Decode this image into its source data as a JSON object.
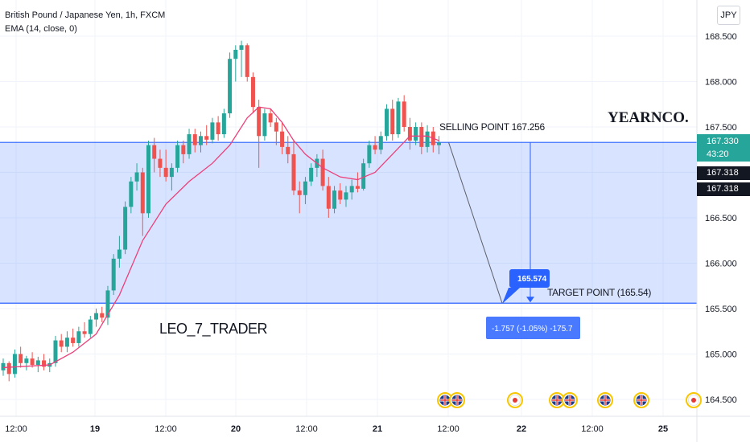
{
  "chart_data": {
    "type": "candlestick",
    "title": "British Pound / Japanese Yen, 1h, FXCM",
    "indicator": "EMA (14, close, 0)",
    "currency_button": "JPY",
    "ylim": [
      164.35,
      168.75
    ],
    "y_ticks": [
      "168.500",
      "168.000",
      "167.500",
      "167.000",
      "166.500",
      "166.000",
      "165.500",
      "165.000",
      "164.500"
    ],
    "x_ticks": [
      "12:00",
      "19",
      "12:00",
      "20",
      "12:00",
      "21",
      "12:00",
      "22",
      "12:00",
      "25"
    ],
    "price_tag": {
      "price": "167.330",
      "countdown": "43:20"
    },
    "secondary_tags": [
      "167.318",
      "167.318"
    ],
    "zone": {
      "top": 167.33,
      "bottom": 165.56
    },
    "candles": [
      [
        164.82,
        164.95,
        164.76,
        164.9
      ],
      [
        164.9,
        164.92,
        164.7,
        164.78
      ],
      [
        164.78,
        165.05,
        164.74,
        165.0
      ],
      [
        165.0,
        165.08,
        164.85,
        164.9
      ],
      [
        164.9,
        164.98,
        164.82,
        164.95
      ],
      [
        164.95,
        165.02,
        164.85,
        164.88
      ],
      [
        164.88,
        164.97,
        164.8,
        164.93
      ],
      [
        164.93,
        165.0,
        164.82,
        164.86
      ],
      [
        164.86,
        164.95,
        164.8,
        164.9
      ],
      [
        164.9,
        165.2,
        164.86,
        165.15
      ],
      [
        165.15,
        165.22,
        165.02,
        165.08
      ],
      [
        165.08,
        165.25,
        165.02,
        165.18
      ],
      [
        165.18,
        165.28,
        165.08,
        165.12
      ],
      [
        165.12,
        165.3,
        165.08,
        165.25
      ],
      [
        165.25,
        165.35,
        165.18,
        165.22
      ],
      [
        165.22,
        165.42,
        165.18,
        165.38
      ],
      [
        165.38,
        165.5,
        165.3,
        165.45
      ],
      [
        165.45,
        165.52,
        165.35,
        165.4
      ],
      [
        165.4,
        165.75,
        165.32,
        165.7
      ],
      [
        165.7,
        166.1,
        165.65,
        166.05
      ],
      [
        166.05,
        166.3,
        165.95,
        166.15
      ],
      [
        166.15,
        166.68,
        166.1,
        166.62
      ],
      [
        166.62,
        166.95,
        166.55,
        166.9
      ],
      [
        166.9,
        167.1,
        166.8,
        167.0
      ],
      [
        167.0,
        167.05,
        166.3,
        166.55
      ],
      [
        166.55,
        167.35,
        166.5,
        167.3
      ],
      [
        167.3,
        167.38,
        167.0,
        167.15
      ],
      [
        167.15,
        167.25,
        166.95,
        167.05
      ],
      [
        167.05,
        167.25,
        166.9,
        166.95
      ],
      [
        166.95,
        167.1,
        166.8,
        167.05
      ],
      [
        167.05,
        167.35,
        167.0,
        167.3
      ],
      [
        167.3,
        167.35,
        167.1,
        167.2
      ],
      [
        167.2,
        167.48,
        167.15,
        167.42
      ],
      [
        167.42,
        167.48,
        167.22,
        167.3
      ],
      [
        167.3,
        167.45,
        167.22,
        167.4
      ],
      [
        167.4,
        167.52,
        167.3,
        167.36
      ],
      [
        167.36,
        167.6,
        167.32,
        167.55
      ],
      [
        167.55,
        167.62,
        167.35,
        167.42
      ],
      [
        167.42,
        167.7,
        167.38,
        167.65
      ],
      [
        167.65,
        168.32,
        167.6,
        168.25
      ],
      [
        168.25,
        168.4,
        168.0,
        168.35
      ],
      [
        168.35,
        168.45,
        168.05,
        168.4
      ],
      [
        168.4,
        168.42,
        168.0,
        168.05
      ],
      [
        168.05,
        168.1,
        167.65,
        167.72
      ],
      [
        167.72,
        167.8,
        167.05,
        167.4
      ],
      [
        167.4,
        167.7,
        167.35,
        167.65
      ],
      [
        167.65,
        167.7,
        167.5,
        167.55
      ],
      [
        167.55,
        167.6,
        167.3,
        167.45
      ],
      [
        167.45,
        167.55,
        167.2,
        167.28
      ],
      [
        167.28,
        167.4,
        167.1,
        167.2
      ],
      [
        167.2,
        167.35,
        166.75,
        166.8
      ],
      [
        166.8,
        166.9,
        166.55,
        166.75
      ],
      [
        166.75,
        166.95,
        166.65,
        166.9
      ],
      [
        166.9,
        167.1,
        166.85,
        167.05
      ],
      [
        167.05,
        167.2,
        166.95,
        167.15
      ],
      [
        167.15,
        167.25,
        166.8,
        166.85
      ],
      [
        166.85,
        166.95,
        166.5,
        166.6
      ],
      [
        166.6,
        166.85,
        166.55,
        166.8
      ],
      [
        166.8,
        166.88,
        166.65,
        166.7
      ],
      [
        166.7,
        166.85,
        166.62,
        166.78
      ],
      [
        166.78,
        166.92,
        166.7,
        166.85
      ],
      [
        166.85,
        167.0,
        166.78,
        166.82
      ],
      [
        166.82,
        167.15,
        166.8,
        167.1
      ],
      [
        167.1,
        167.35,
        167.05,
        167.3
      ],
      [
        167.3,
        167.4,
        167.2,
        167.25
      ],
      [
        167.25,
        167.45,
        167.2,
        167.4
      ],
      [
        167.4,
        167.75,
        167.35,
        167.7
      ],
      [
        167.7,
        167.8,
        167.35,
        167.42
      ],
      [
        167.42,
        167.82,
        167.38,
        167.78
      ],
      [
        167.78,
        167.85,
        167.45,
        167.5
      ],
      [
        167.5,
        167.6,
        167.25,
        167.35
      ],
      [
        167.35,
        167.55,
        167.3,
        167.5
      ],
      [
        167.5,
        167.55,
        167.2,
        167.28
      ],
      [
        167.28,
        167.52,
        167.22,
        167.45
      ],
      [
        167.45,
        167.5,
        167.22,
        167.3
      ],
      [
        167.3,
        167.4,
        167.2,
        167.33
      ]
    ],
    "ema": [
      [
        0,
        164.85
      ],
      [
        8,
        164.88
      ],
      [
        12,
        165.02
      ],
      [
        16,
        165.22
      ],
      [
        20,
        165.65
      ],
      [
        24,
        166.25
      ],
      [
        28,
        166.65
      ],
      [
        32,
        166.9
      ],
      [
        36,
        167.1
      ],
      [
        39,
        167.3
      ],
      [
        42,
        167.6
      ],
      [
        44,
        167.72
      ],
      [
        46,
        167.7
      ],
      [
        48,
        167.55
      ],
      [
        50,
        167.35
      ],
      [
        52,
        167.2
      ],
      [
        55,
        167.05
      ],
      [
        58,
        166.95
      ],
      [
        61,
        166.92
      ],
      [
        64,
        167.0
      ],
      [
        67,
        167.2
      ],
      [
        70,
        167.4
      ],
      [
        73,
        167.4
      ],
      [
        75,
        167.35
      ]
    ],
    "bull_color": "#26a69a",
    "bear_color": "#ef5350",
    "ema_color": "#ec407a",
    "zone_color": "#2962ff",
    "annotations": {
      "selling_point": "SELLING POINT 167.256",
      "target_point": "TARGET POINT (165.54)",
      "brand": "YEARNCO.",
      "author": "LEO_7_TRADER",
      "callout_value": "165.574",
      "measure_label": "-1.757 (-1.05%) -175.7"
    },
    "events": [
      "gb",
      "gb",
      "red",
      "gb",
      "gb",
      "gb",
      "gb",
      "red"
    ]
  }
}
